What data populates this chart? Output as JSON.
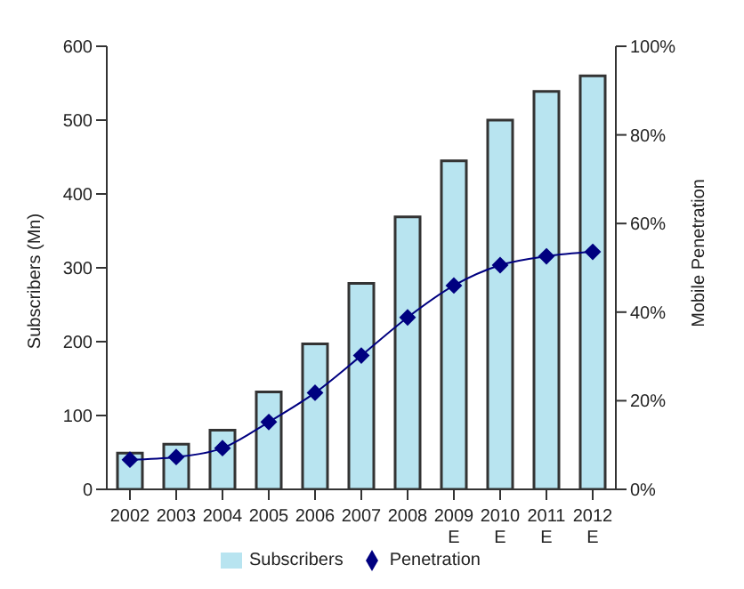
{
  "chart_data": {
    "type": "bar",
    "categories": [
      "2002",
      "2003",
      "2004",
      "2005",
      "2006",
      "2007",
      "2008",
      "2009\nE",
      "2010\nE",
      "2011\nE",
      "2012\nE"
    ],
    "series": [
      {
        "name": "Subscribers",
        "color": "#b8e4f0",
        "values": [
          49,
          61,
          80,
          132,
          197,
          279,
          369,
          445,
          500,
          539,
          560
        ]
      },
      {
        "name": "Penetration",
        "type": "line",
        "axis": "y2",
        "color": "#000080",
        "marker": "diamond",
        "values": [
          6.7,
          7.3,
          9.3,
          15.2,
          21.8,
          30.2,
          38.8,
          46,
          50.6,
          52.6,
          53.6
        ]
      }
    ],
    "ylabel": "Subscribers (Mn)",
    "y2label": "Mobile Penetration",
    "ylim": [
      0,
      600
    ],
    "yticks": [
      0,
      100,
      200,
      300,
      400,
      500,
      600
    ],
    "y2lim": [
      0,
      100
    ],
    "y2ticks": [
      {
        "value": 0,
        "label": "0%"
      },
      {
        "value": 20,
        "label": "20%"
      },
      {
        "value": 40,
        "label": "40%"
      },
      {
        "value": 60,
        "label": "60%"
      },
      {
        "value": 80,
        "label": "80%"
      },
      {
        "value": 100,
        "label": "100%"
      }
    ],
    "grid": false,
    "legend": "bottom"
  }
}
